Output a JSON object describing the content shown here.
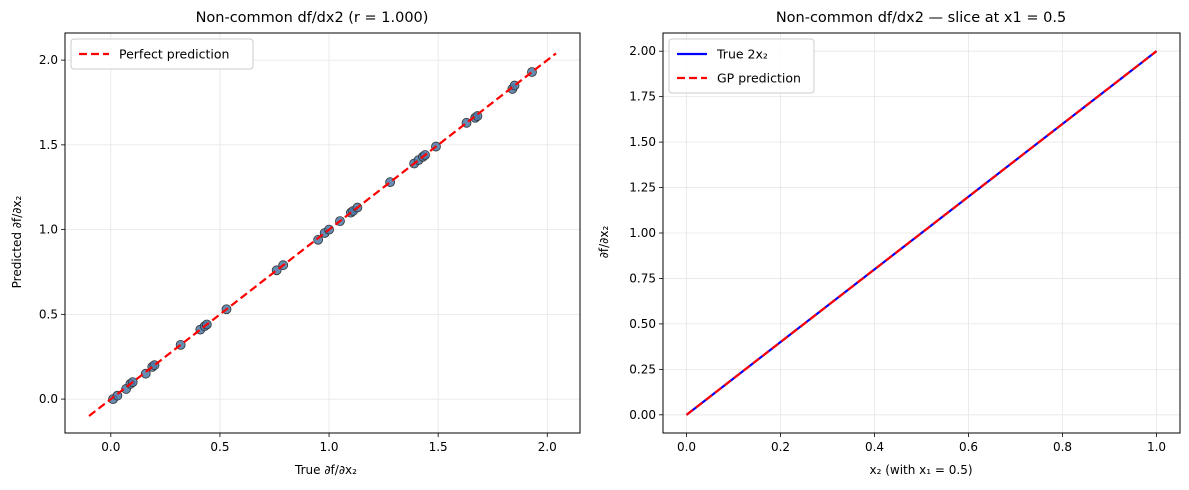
{
  "chart_data": [
    {
      "type": "scatter",
      "title": "Non-common df/dx2  (r = 1.000)",
      "xlabel": "True ∂f/∂x₂",
      "ylabel": "Predicted ∂f/∂x₂",
      "xlim": [
        -0.21,
        2.15
      ],
      "ylim": [
        -0.2,
        2.16
      ],
      "xticks": [
        "0.0",
        "0.5",
        "1.0",
        "1.5",
        "2.0"
      ],
      "yticks": [
        "0.0",
        "0.5",
        "1.0",
        "1.5",
        "2.0"
      ],
      "grid": true,
      "legend_position": "top-left",
      "series": [
        {
          "name": "",
          "kind": "scatter",
          "color": "#4a78a6",
          "points": [
            [
              0.01,
              0.0
            ],
            [
              0.03,
              0.02
            ],
            [
              0.07,
              0.06
            ],
            [
              0.09,
              0.09
            ],
            [
              0.1,
              0.1
            ],
            [
              0.16,
              0.15
            ],
            [
              0.19,
              0.19
            ],
            [
              0.2,
              0.2
            ],
            [
              0.32,
              0.32
            ],
            [
              0.41,
              0.41
            ],
            [
              0.43,
              0.43
            ],
            [
              0.44,
              0.44
            ],
            [
              0.53,
              0.53
            ],
            [
              0.76,
              0.76
            ],
            [
              0.79,
              0.79
            ],
            [
              0.95,
              0.94
            ],
            [
              0.98,
              0.98
            ],
            [
              1.0,
              1.0
            ],
            [
              1.05,
              1.05
            ],
            [
              1.1,
              1.1
            ],
            [
              1.11,
              1.11
            ],
            [
              1.13,
              1.13
            ],
            [
              1.28,
              1.28
            ],
            [
              1.39,
              1.39
            ],
            [
              1.41,
              1.41
            ],
            [
              1.43,
              1.43
            ],
            [
              1.44,
              1.44
            ],
            [
              1.49,
              1.49
            ],
            [
              1.63,
              1.63
            ],
            [
              1.67,
              1.66
            ],
            [
              1.68,
              1.67
            ],
            [
              1.84,
              1.83
            ],
            [
              1.85,
              1.85
            ],
            [
              1.93,
              1.93
            ]
          ]
        },
        {
          "name": "Perfect prediction",
          "kind": "line",
          "dash": "dashed",
          "color": "#ff0000",
          "x": [
            -0.1,
            2.04
          ],
          "y": [
            -0.1,
            2.04
          ]
        }
      ]
    },
    {
      "type": "line",
      "title": "Non-common df/dx2 — slice at x1 = 0.5",
      "xlabel": "x₂  (with x₁ = 0.5)",
      "ylabel": "∂f/∂x₂",
      "xlim": [
        -0.05,
        1.05
      ],
      "ylim": [
        -0.1,
        2.1
      ],
      "xticks": [
        "0.0",
        "0.2",
        "0.4",
        "0.6",
        "0.8",
        "1.0"
      ],
      "yticks": [
        "0.00",
        "0.25",
        "0.50",
        "0.75",
        "1.00",
        "1.25",
        "1.50",
        "1.75",
        "2.00"
      ],
      "grid": true,
      "legend_position": "top-left",
      "series": [
        {
          "name": "True 2x₂",
          "kind": "line",
          "dash": "solid",
          "color": "#0000ff",
          "x": [
            0,
            1
          ],
          "y": [
            0,
            2
          ]
        },
        {
          "name": "GP prediction",
          "kind": "line",
          "dash": "dashed",
          "color": "#ff0000",
          "x": [
            0,
            1
          ],
          "y": [
            0,
            2
          ]
        }
      ]
    }
  ]
}
